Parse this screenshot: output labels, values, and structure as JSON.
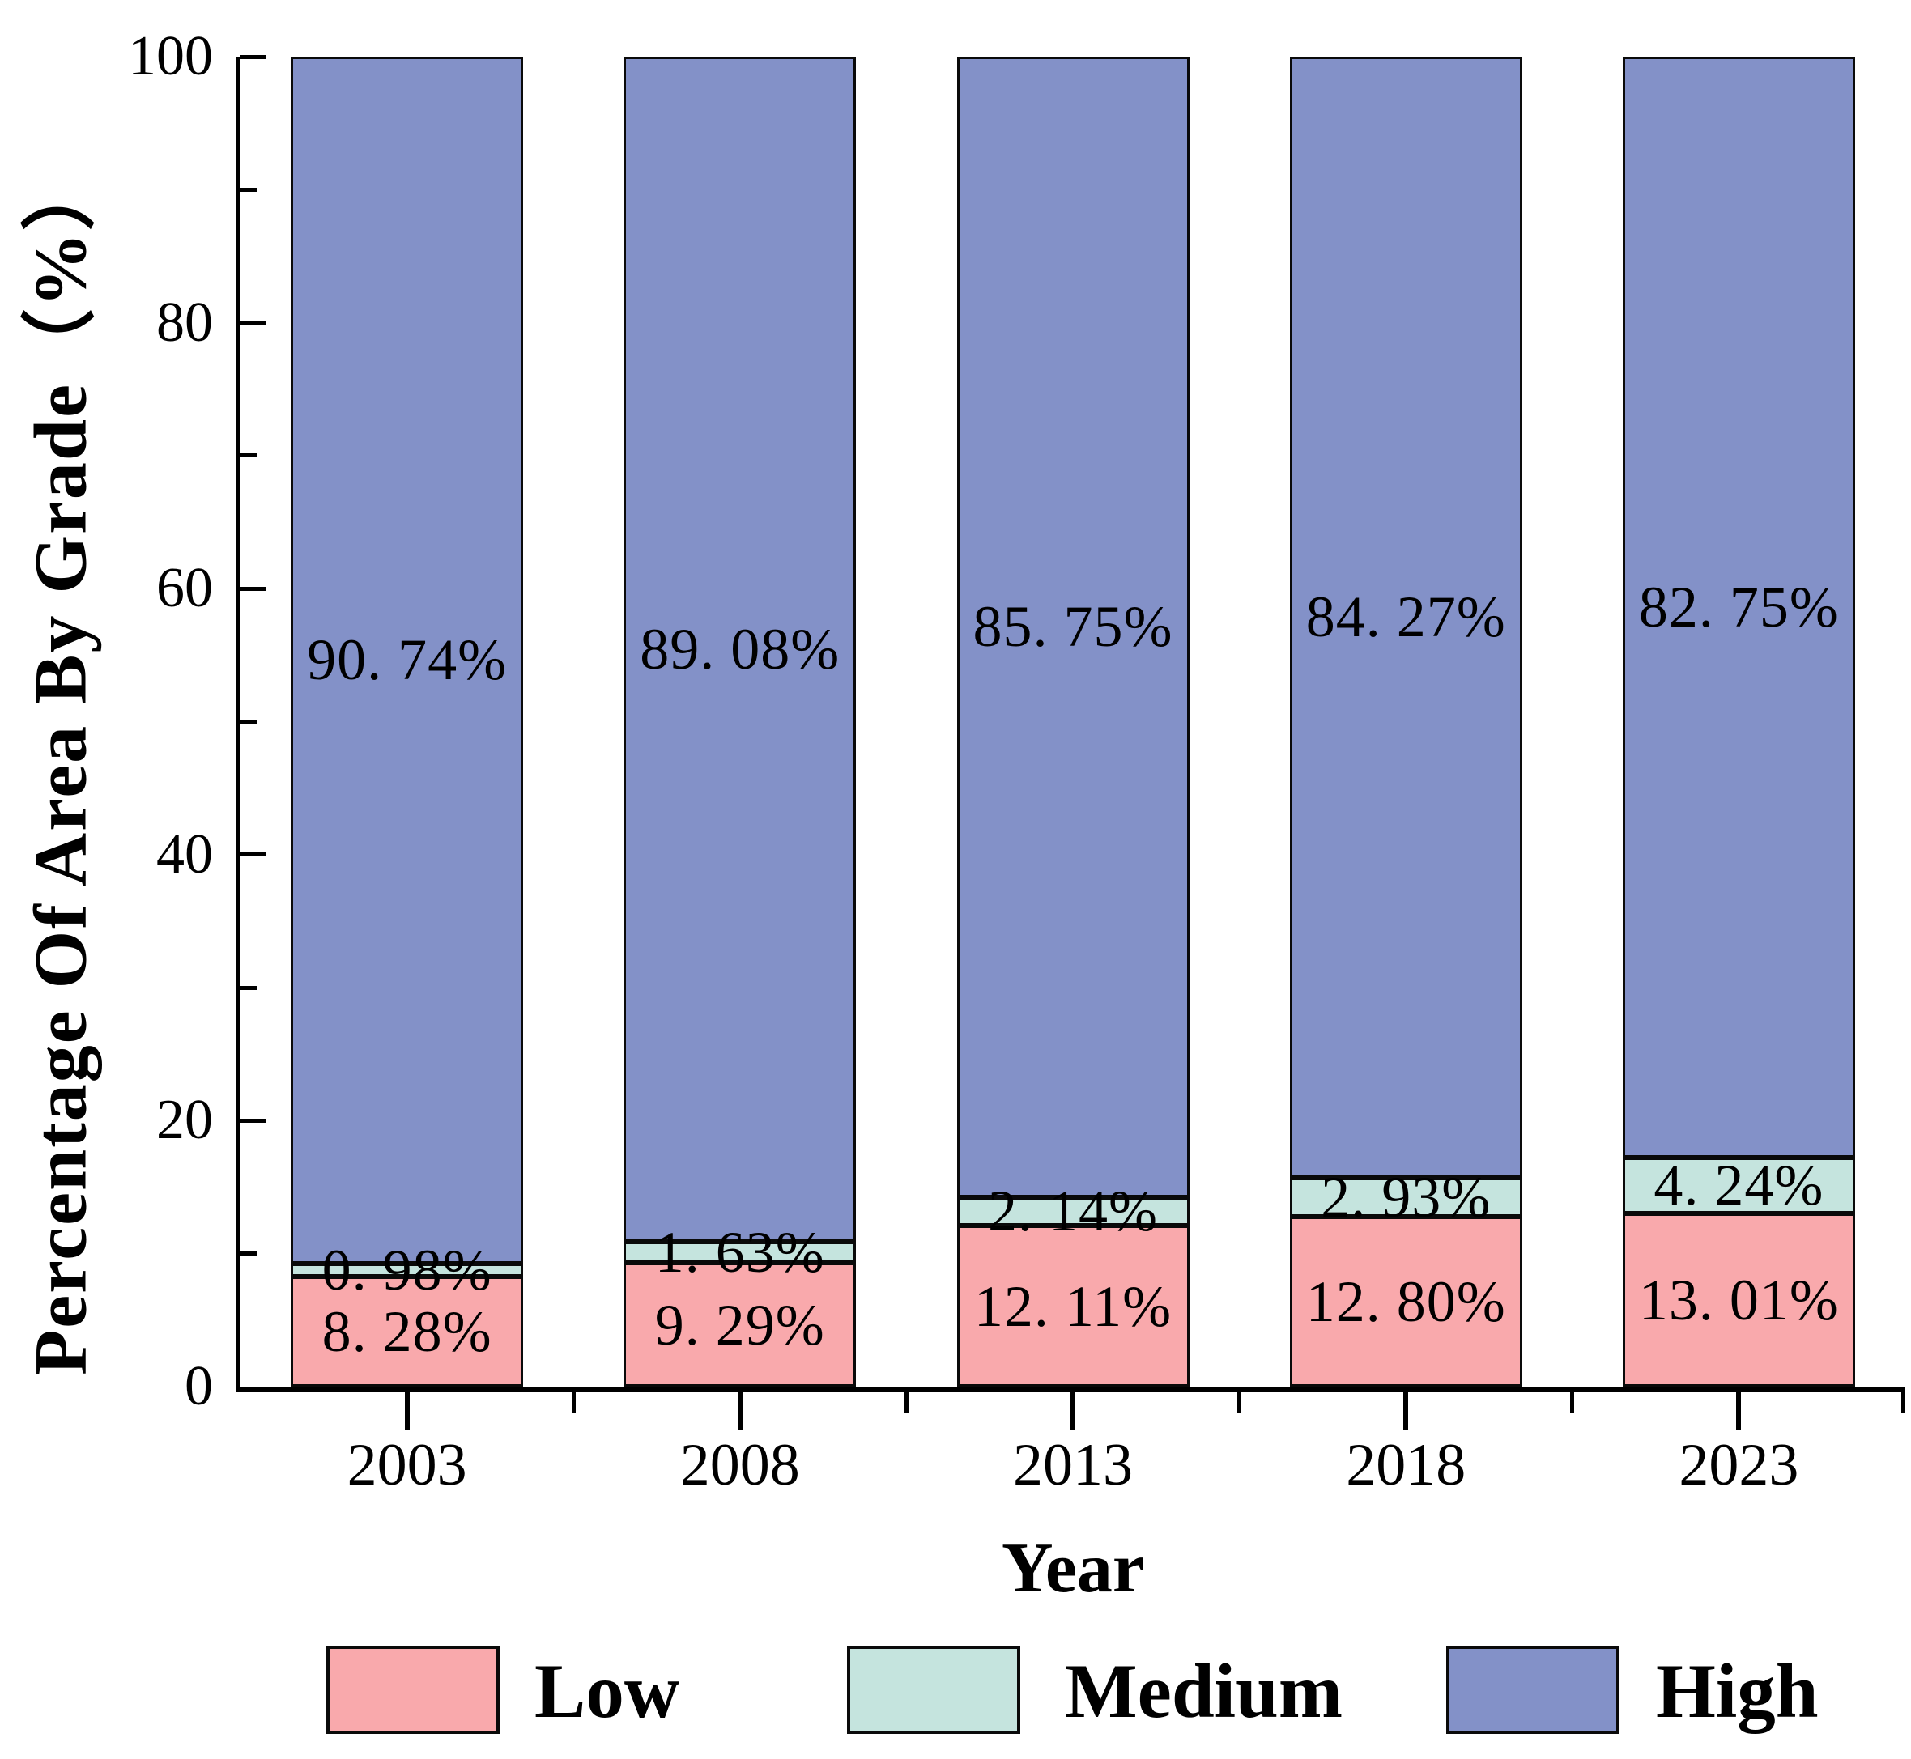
{
  "chart_data": {
    "type": "bar",
    "stacked": true,
    "title": "",
    "xlabel": "Year",
    "ylabel": "Percentage Of Area By Grade（%）",
    "categories": [
      "2003",
      "2008",
      "2013",
      "2018",
      "2023"
    ],
    "series": [
      {
        "name": "Low",
        "color": "#f9a9ac",
        "values": [
          8.28,
          9.29,
          12.11,
          12.8,
          13.01
        ],
        "labels": [
          "8. 28%",
          "9. 29%",
          "12. 11%",
          "12. 80%",
          "13. 01%"
        ]
      },
      {
        "name": "Medium",
        "color": "#c5e4de",
        "values": [
          0.98,
          1.63,
          2.14,
          2.93,
          4.24
        ],
        "labels": [
          "0. 98%",
          "1. 63%",
          "2. 14%",
          "2. 93%",
          "4. 24%"
        ]
      },
      {
        "name": "High",
        "color": "#8391c8",
        "values": [
          90.74,
          89.08,
          85.75,
          84.27,
          82.75
        ],
        "labels": [
          "90. 74%",
          "89. 08%",
          "85. 75%",
          "84. 27%",
          "82. 75%"
        ]
      }
    ],
    "ylim": [
      0,
      100
    ],
    "yticks_major": [
      0,
      20,
      40,
      60,
      80,
      100
    ],
    "yticks_minor": [
      10,
      30,
      50,
      70,
      90
    ],
    "grid": false,
    "legend_position": "bottom",
    "legend_items": [
      "Low",
      "Medium",
      "High"
    ],
    "axis_color": "#000000",
    "bar_border_color": "#0a0a0a",
    "background_color": "#ffffff"
  }
}
